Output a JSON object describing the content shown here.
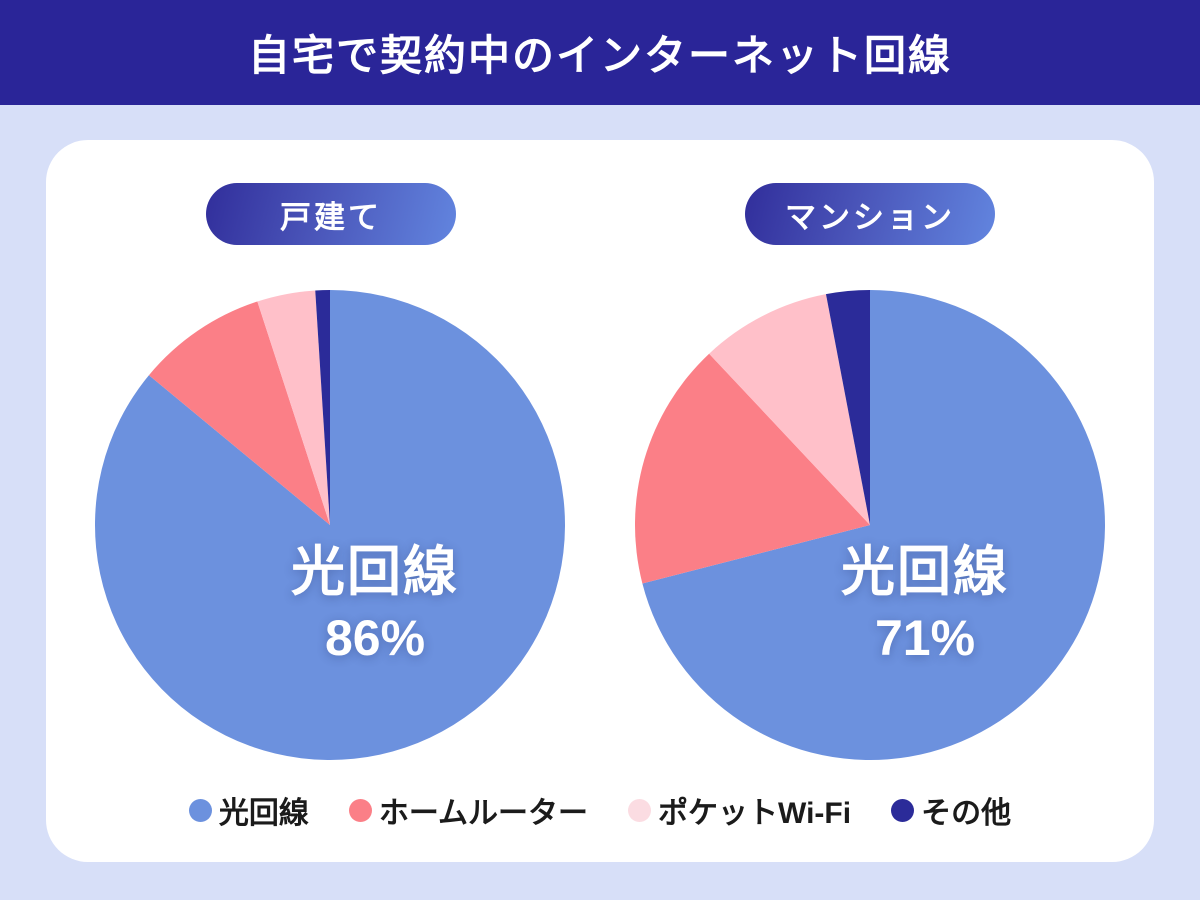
{
  "header": {
    "title": "自宅で契約中のインターネット回線"
  },
  "colors": {
    "header_bg": "#2A2598",
    "page_bg": "#D7DFF8",
    "card_bg": "#FFFFFF",
    "badge_gradient_start": "#312E9B",
    "badge_gradient_end": "#6285DF",
    "fiber_blue": "#6C91DE",
    "home_router_red": "#FB7F87",
    "pocket_wifi_pink": "#FFC0C9",
    "other_navy": "#2B2B99"
  },
  "legend": {
    "items": [
      {
        "label": "光回線",
        "color": "#6C91DE"
      },
      {
        "label": "ホームルーター",
        "color": "#FB7F87"
      },
      {
        "label": "ポケットWi-Fi",
        "color": "#FBDCE2"
      },
      {
        "label": "その他",
        "color": "#2B2B99"
      }
    ]
  },
  "chart_data": [
    {
      "type": "pie",
      "title": "戸建て",
      "unit": "%",
      "categories": [
        "光回線",
        "ホームルーター",
        "ポケットWi-Fi",
        "その他"
      ],
      "values": [
        86,
        9,
        4,
        1
      ],
      "colors": [
        "#6C91DE",
        "#FB7F87",
        "#FFC0C9",
        "#2B2B99"
      ],
      "start_angle": 0,
      "direction": "clockwise",
      "center_label": {
        "name": "光回線",
        "percent": "86%"
      }
    },
    {
      "type": "pie",
      "title": "マンション",
      "unit": "%",
      "categories": [
        "光回線",
        "ホームルーター",
        "ポケットWi-Fi",
        "その他"
      ],
      "values": [
        71,
        17,
        9,
        3
      ],
      "colors": [
        "#6C91DE",
        "#FB7F87",
        "#FFC0C9",
        "#2B2B99"
      ],
      "start_angle": 0,
      "direction": "clockwise",
      "center_label": {
        "name": "光回線",
        "percent": "71%"
      }
    }
  ]
}
